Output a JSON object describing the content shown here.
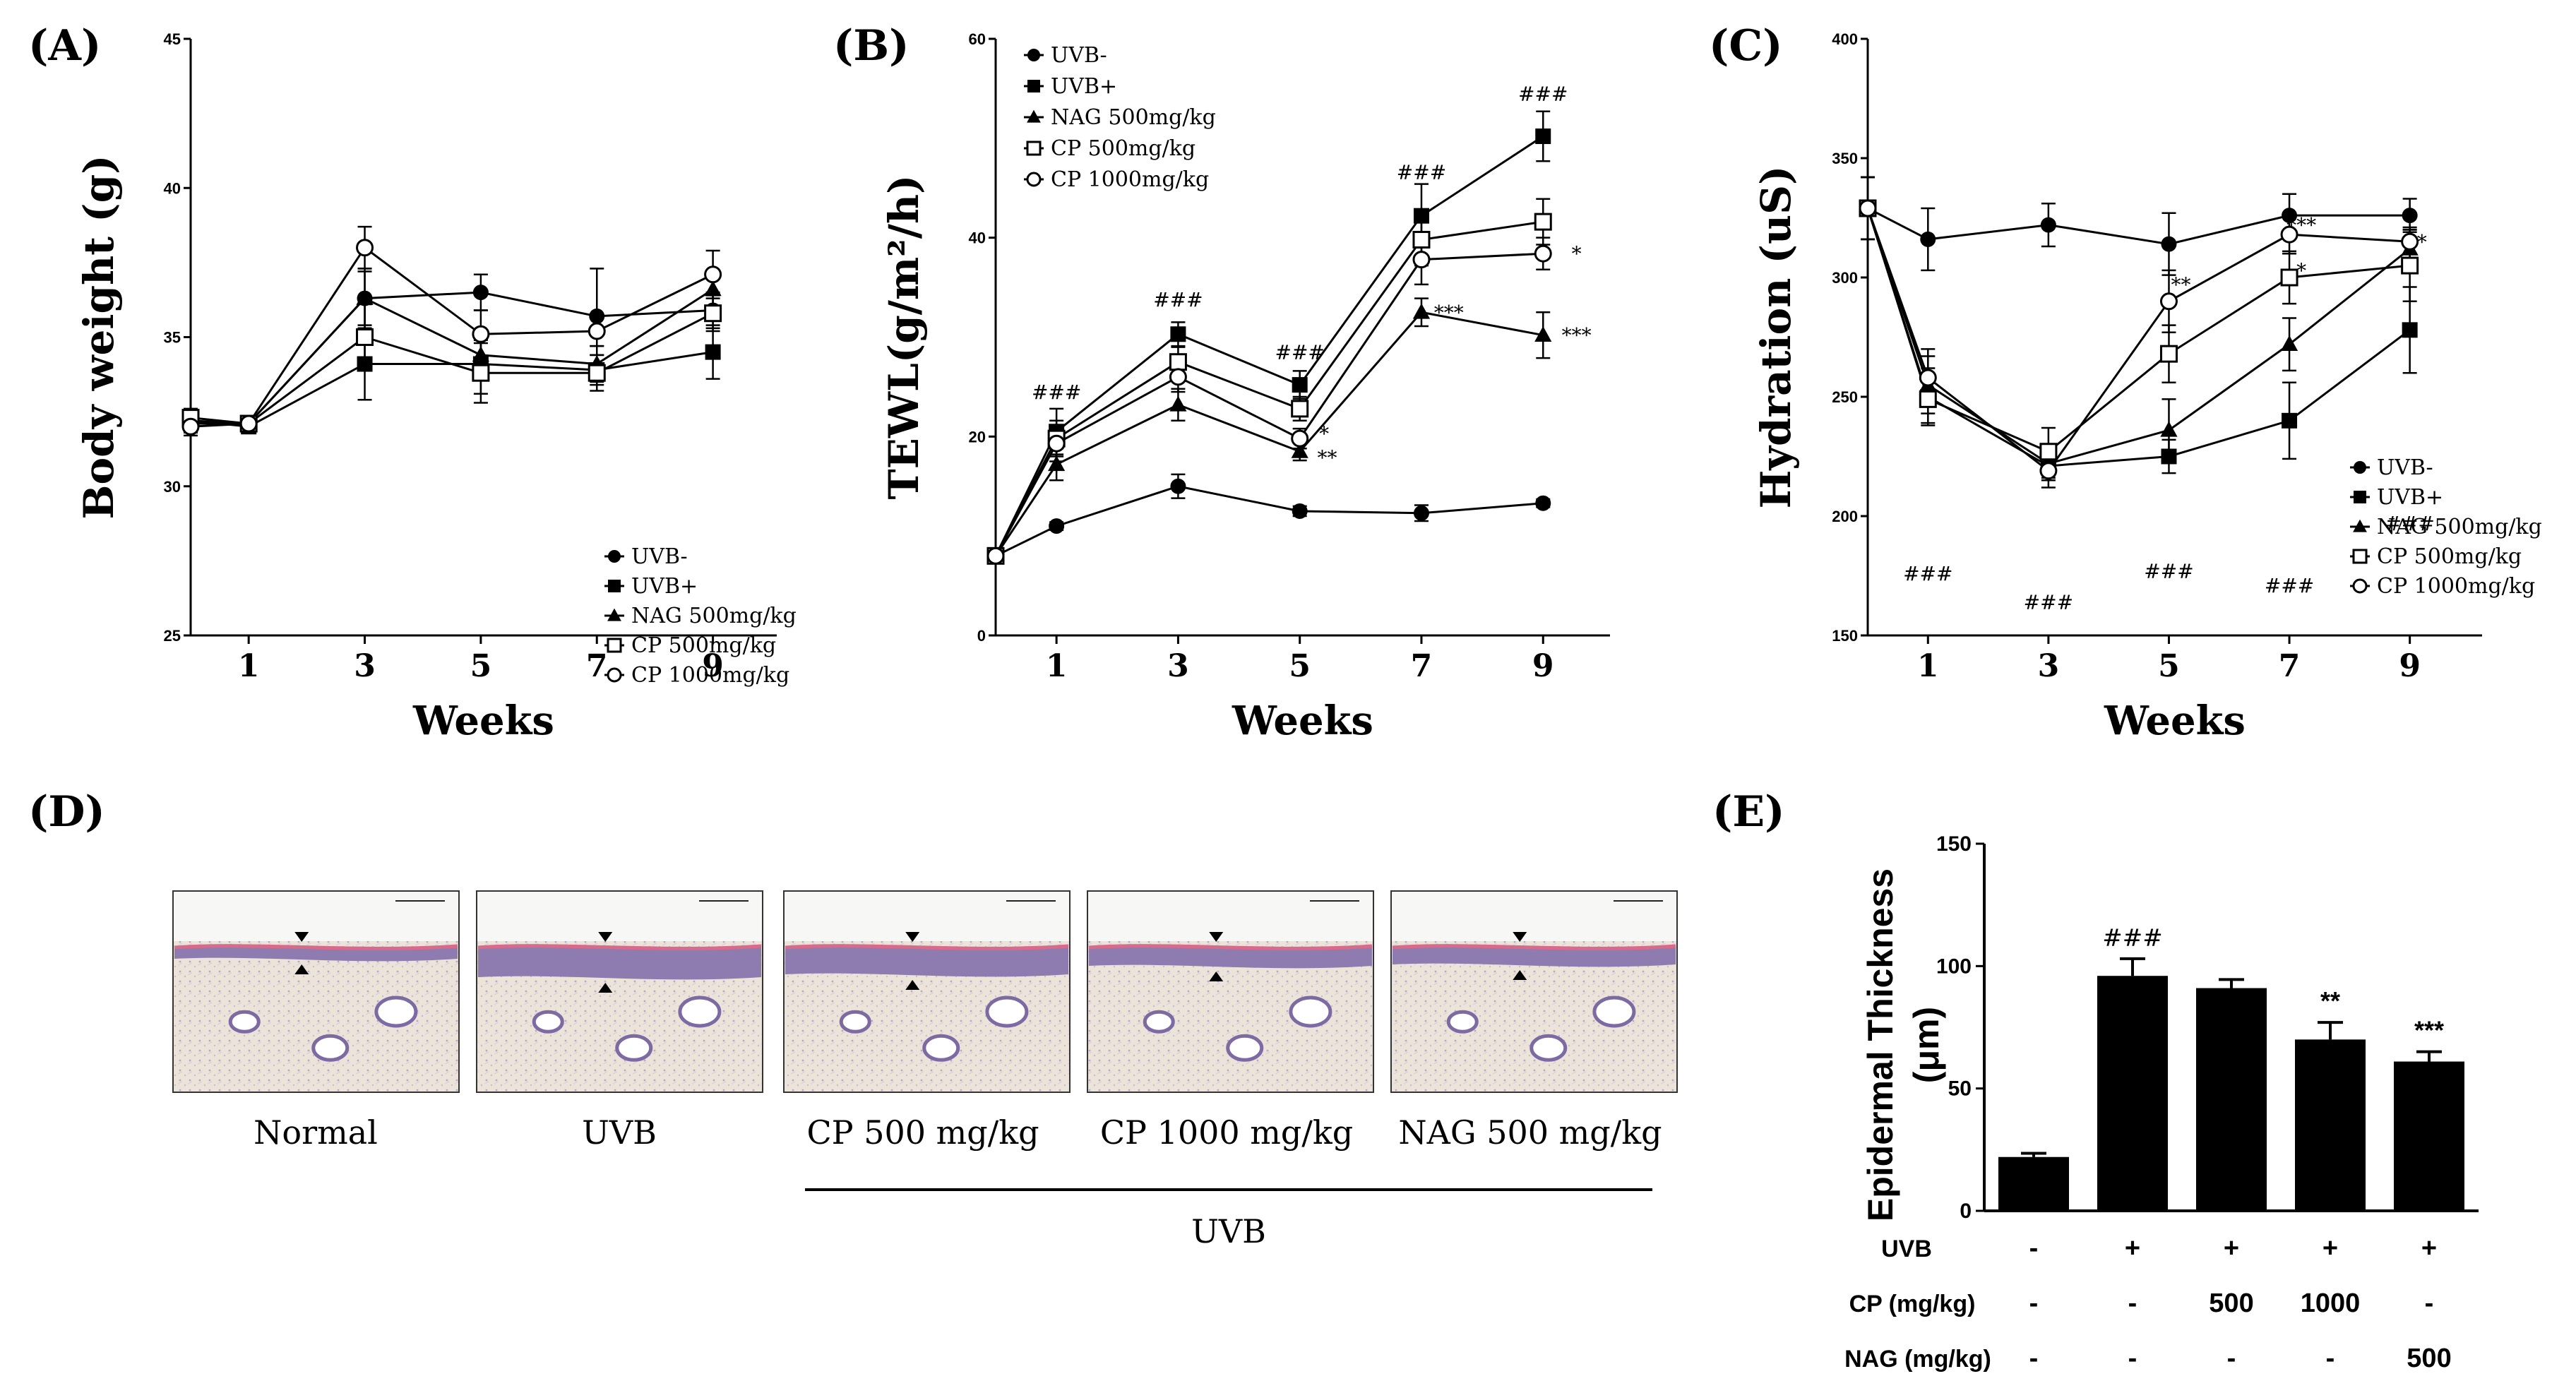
{
  "panels": {
    "A": "(A)",
    "B": "(B)",
    "C": "(C)",
    "D": "(D)",
    "E": "(E)"
  },
  "colors": {
    "ink": "#000000",
    "tissue_pink": "#d9b8c8",
    "tissue_purple": "#8e7bb0",
    "dermis": "#e8dfd2"
  },
  "line_series_names": [
    "UVB-",
    "UVB+",
    "NAG 500mg/kg",
    "CP 500mg/kg",
    "CP 1000mg/kg"
  ],
  "chart_data": [
    {
      "id": "A",
      "type": "line",
      "ylabel": "Body weight (g)",
      "xlabel": "Weeks",
      "x": [
        0,
        1,
        3,
        5,
        7,
        9
      ],
      "xticks": [
        1,
        3,
        5,
        7,
        9
      ],
      "yticks": [
        25,
        30,
        35,
        40,
        45
      ],
      "ylim": [
        25,
        45
      ],
      "legend": "bottom-right",
      "series": [
        {
          "name": "UVB-",
          "values": [
            32.1,
            32.1,
            36.3,
            36.5,
            35.7,
            35.9
          ],
          "err": [
            0.3,
            0.2,
            0.9,
            0.6,
            1.6,
            0.6
          ]
        },
        {
          "name": "UVB+",
          "values": [
            32.2,
            32.0,
            34.1,
            34.1,
            33.9,
            34.5
          ],
          "err": [
            0.3,
            0.2,
            1.2,
            1.0,
            0.5,
            0.9
          ]
        },
        {
          "name": "NAG 500mg/kg",
          "values": [
            32.2,
            32.1,
            36.3,
            34.4,
            34.1,
            36.6
          ],
          "err": [
            0.3,
            0.2,
            1.0,
            0.5,
            0.6,
            0.6
          ]
        },
        {
          "name": "CP 500mg/kg",
          "values": [
            32.3,
            32.1,
            35.0,
            33.8,
            33.8,
            35.8
          ],
          "err": [
            0.3,
            0.2,
            1.1,
            1.0,
            0.6,
            0.6
          ]
        },
        {
          "name": "CP 1000mg/kg",
          "values": [
            32.0,
            32.1,
            38.0,
            35.1,
            35.2,
            37.1
          ],
          "err": [
            0.3,
            0.2,
            0.7,
            0.8,
            0.5,
            0.8
          ]
        }
      ],
      "annotations": []
    },
    {
      "id": "B",
      "type": "line",
      "ylabel": "TEWL(g/m²/h)",
      "xlabel": "Weeks",
      "x": [
        0,
        1,
        3,
        5,
        7,
        9
      ],
      "xticks": [
        1,
        3,
        5,
        7,
        9
      ],
      "yticks": [
        0,
        20,
        40,
        60
      ],
      "ylim": [
        0,
        60
      ],
      "legend": "top-left",
      "series": [
        {
          "name": "UVB-",
          "values": [
            8,
            11,
            15,
            12.5,
            12.3,
            13.3
          ],
          "err": [
            0,
            0.4,
            1.2,
            0.5,
            0.8,
            0.4
          ]
        },
        {
          "name": "UVB+",
          "values": [
            8,
            20.5,
            30.3,
            25.2,
            42.2,
            50.2
          ],
          "err": [
            0,
            2.3,
            1.2,
            1.4,
            3.2,
            2.5
          ]
        },
        {
          "name": "NAG 500mg/kg",
          "values": [
            8,
            17.2,
            23.2,
            18.5,
            32.5,
            30.2
          ],
          "err": [
            0,
            1.6,
            1.6,
            0.9,
            1.4,
            2.3
          ]
        },
        {
          "name": "CP 500mg/kg",
          "values": [
            8,
            19.8,
            27.5,
            22.8,
            39.8,
            41.6
          ],
          "err": [
            0,
            1.8,
            1.5,
            1.2,
            2.6,
            2.3
          ]
        },
        {
          "name": "CP 1000mg/kg",
          "values": [
            8,
            19.3,
            26.0,
            19.8,
            37.8,
            38.4
          ],
          "err": [
            0,
            1.8,
            1.5,
            1.0,
            2.5,
            1.6
          ]
        }
      ],
      "annotations": [
        {
          "x": 1,
          "y": 24.5,
          "text": "###"
        },
        {
          "x": 3,
          "y": 33.8,
          "text": "###"
        },
        {
          "x": 5,
          "y": 28.5,
          "text": "###"
        },
        {
          "x": 7,
          "y": 46.6,
          "text": "###"
        },
        {
          "x": 9,
          "y": 54.5,
          "text": "###"
        },
        {
          "x": 9.55,
          "y": 38.4,
          "text": "*"
        },
        {
          "x": 9.55,
          "y": 30.2,
          "text": "***"
        },
        {
          "x": 7.45,
          "y": 32.5,
          "text": "***"
        },
        {
          "x": 5.4,
          "y": 20.3,
          "text": "*"
        },
        {
          "x": 5.45,
          "y": 17.9,
          "text": "**"
        }
      ]
    },
    {
      "id": "C",
      "type": "line",
      "ylabel": "Hydration (uS)",
      "xlabel": "Weeks",
      "x": [
        0,
        1,
        3,
        5,
        7,
        9
      ],
      "xticks": [
        1,
        3,
        5,
        7,
        9
      ],
      "yticks": [
        150,
        200,
        250,
        300,
        350,
        400
      ],
      "ylim": [
        150,
        400
      ],
      "legend": "bottom-right",
      "series": [
        {
          "name": "UVB-",
          "values": [
            329,
            316,
            322,
            314,
            326,
            326
          ],
          "err": [
            13,
            13,
            9,
            13,
            9,
            7
          ]
        },
        {
          "name": "UVB+",
          "values": [
            329,
            250,
            221,
            225,
            240,
            278
          ],
          "err": [
            13,
            12,
            6,
            7,
            16,
            18
          ]
        },
        {
          "name": "NAG 500mg/kg",
          "values": [
            329,
            255,
            222,
            236,
            272,
            312
          ],
          "err": [
            13,
            12,
            6,
            13,
            11,
            9
          ]
        },
        {
          "name": "CP 500mg/kg",
          "values": [
            329,
            249,
            227,
            268,
            300,
            305
          ],
          "err": [
            13,
            10,
            10,
            12,
            11,
            15
          ]
        },
        {
          "name": "CP 1000mg/kg",
          "values": [
            329,
            258,
            219,
            290,
            318,
            315
          ],
          "err": [
            13,
            12,
            7,
            13,
            8,
            5
          ]
        }
      ],
      "annotations": [
        {
          "x": 1,
          "y": 176,
          "text": "###"
        },
        {
          "x": 3,
          "y": 164,
          "text": "###"
        },
        {
          "x": 5,
          "y": 177,
          "text": "###"
        },
        {
          "x": 7,
          "y": 171,
          "text": "###"
        },
        {
          "x": 9,
          "y": 197,
          "text": "###"
        },
        {
          "x": 7.2,
          "y": 322,
          "text": "***"
        },
        {
          "x": 5.2,
          "y": 297,
          "text": "**"
        },
        {
          "x": 7.2,
          "y": 303,
          "text": "*"
        },
        {
          "x": 9.2,
          "y": 315,
          "text": "*"
        }
      ]
    },
    {
      "id": "E",
      "type": "bar",
      "ylabel": "Epidermal Thickness (μm)",
      "ylabel_line1": "Epidermal Thickness",
      "ylabel_line2": "(μm)",
      "yticks": [
        0,
        50,
        100,
        150
      ],
      "ylim": [
        0,
        150
      ],
      "values": [
        22,
        96,
        91,
        70,
        61
      ],
      "err": [
        1.5,
        7,
        3.5,
        7,
        4
      ],
      "bar_labels": [
        "",
        "###",
        "",
        "**",
        "***"
      ],
      "table": [
        {
          "label": "UVB",
          "cells": [
            "-",
            "+",
            "+",
            "+",
            "+"
          ]
        },
        {
          "label": "CP (mg/kg)",
          "cells": [
            "-",
            "-",
            "500",
            "1000",
            "-"
          ]
        },
        {
          "label": "NAG (mg/kg)",
          "cells": [
            "-",
            "-",
            "-",
            "-",
            "500"
          ]
        }
      ]
    }
  ],
  "histology": {
    "captions": [
      "Normal",
      "UVB",
      "CP 500 mg/kg",
      "CP 1000 mg/kg",
      "NAG 500 mg/kg"
    ],
    "group_label": "UVB"
  }
}
